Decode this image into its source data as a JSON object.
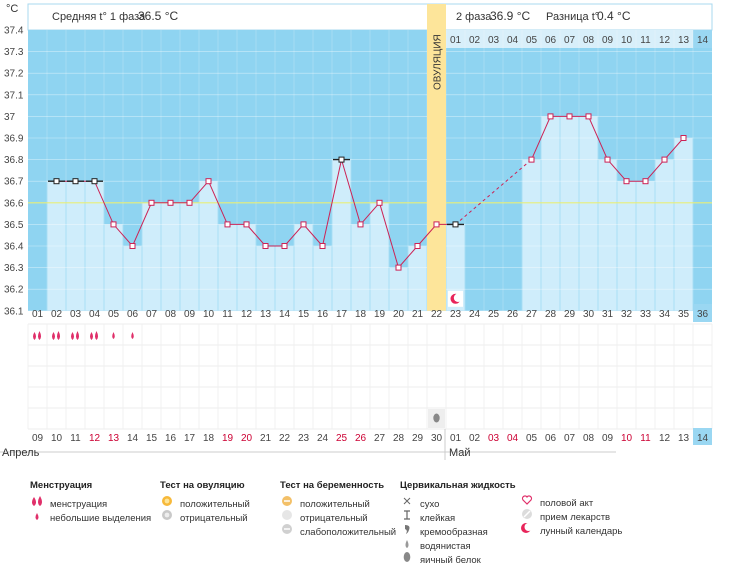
{
  "header": {
    "unit": "°C",
    "phase1_label": "Средняя t° 1 фаза",
    "phase1_value": "36.5 °C",
    "phase2_label": "2 фаза",
    "phase2_value": "36.9 °C",
    "diff_label": "Разница t°",
    "diff_value": "0.4 °C"
  },
  "ovulation_label": "ОВУЛЯЦИЯ",
  "months": {
    "first": "Апрель",
    "second": "Май"
  },
  "colors": {
    "sky": "#8fd4f1",
    "bar": "#cfedfb",
    "ovulation": "#fde59a",
    "line": "#cc2255",
    "threshold": "#e8ee77",
    "weekend": "#cc0033",
    "highlight": "#9ad7f2"
  },
  "chart_data": {
    "type": "line",
    "title": "",
    "ylabel": "°C",
    "ylim": [
      36.1,
      37.4
    ],
    "yticks": [
      "36.1",
      "36.2",
      "36.3",
      "36.4",
      "36.5",
      "36.6",
      "36.7",
      "36.8",
      "36.9",
      "37",
      "37.1",
      "37.2",
      "37.3",
      "37.4"
    ],
    "cycle_days": [
      "01",
      "02",
      "03",
      "04",
      "05",
      "06",
      "07",
      "08",
      "09",
      "10",
      "11",
      "12",
      "13",
      "14",
      "15",
      "16",
      "17",
      "18",
      "19",
      "20",
      "21",
      "22",
      "23",
      "24",
      "25",
      "26",
      "27",
      "28",
      "29",
      "30",
      "31",
      "32",
      "33",
      "34",
      "35",
      "36"
    ],
    "dates": [
      "09",
      "10",
      "11",
      "12",
      "13",
      "14",
      "15",
      "16",
      "17",
      "18",
      "19",
      "20",
      "21",
      "22",
      "23",
      "24",
      "25",
      "26",
      "27",
      "28",
      "29",
      "30",
      "01",
      "02",
      "03",
      "04",
      "05",
      "06",
      "07",
      "08",
      "09",
      "10",
      "11",
      "12",
      "13",
      "14"
    ],
    "date_weekend": [
      false,
      false,
      false,
      true,
      true,
      false,
      false,
      false,
      false,
      false,
      true,
      true,
      false,
      false,
      false,
      false,
      true,
      true,
      false,
      false,
      false,
      false,
      false,
      false,
      true,
      true,
      false,
      false,
      false,
      false,
      false,
      true,
      true,
      false,
      false,
      false
    ],
    "phase2_days": [
      "01",
      "02",
      "03",
      "04",
      "05",
      "06",
      "07",
      "08",
      "09",
      "10",
      "11",
      "12",
      "13",
      "14"
    ],
    "ovulation_day": 22,
    "highlight_day": 36,
    "coverline": 36.6,
    "temperatures": [
      null,
      36.7,
      36.7,
      36.7,
      36.5,
      36.4,
      36.6,
      36.6,
      36.6,
      36.7,
      36.5,
      36.5,
      36.4,
      36.4,
      36.5,
      36.4,
      36.8,
      36.5,
      36.6,
      36.3,
      36.4,
      36.5,
      36.5,
      null,
      null,
      null,
      36.8,
      37.0,
      37.0,
      37.0,
      36.8,
      36.7,
      36.7,
      36.8,
      36.9,
      null
    ],
    "marker_style": [
      "",
      "flat",
      "flat",
      "flat",
      "sq",
      "sq",
      "sq",
      "sq",
      "sq",
      "sq",
      "sq",
      "sq",
      "sq",
      "sq",
      "sq",
      "sq",
      "flat",
      "sq",
      "sq",
      "sq",
      "sq",
      "sq",
      "flat",
      "",
      "",
      "",
      "sq",
      "sq",
      "sq",
      "sq",
      "sq",
      "sq",
      "sq",
      "sq",
      "sq",
      ""
    ],
    "series": [
      {
        "days": [
          2,
          3,
          4,
          5,
          6,
          7,
          8,
          9,
          10,
          11,
          12,
          13,
          14,
          15,
          16,
          17,
          18,
          19,
          20,
          21,
          22,
          23
        ]
      },
      {
        "days": [
          32,
          33,
          34,
          35
        ]
      }
    ],
    "dashed": {
      "from": [
        23,
        36.5
      ],
      "to": [
        27,
        36.8
      ]
    },
    "gap": {
      "from": [
        31,
        36.8
      ],
      "to": [
        32,
        36.7
      ]
    },
    "moon_day": 23,
    "menstruation": [
      {
        "day": 1,
        "kind": "heavy"
      },
      {
        "day": 2,
        "kind": "heavy"
      },
      {
        "day": 3,
        "kind": "heavy"
      },
      {
        "day": 4,
        "kind": "heavy"
      },
      {
        "day": 5,
        "kind": "light"
      },
      {
        "day": 6,
        "kind": "light"
      }
    ],
    "mucus": [
      {
        "day": 22,
        "kind": "egg-white"
      }
    ]
  },
  "legend": {
    "groups": [
      {
        "title": "Менструация",
        "items": [
          {
            "icon": "drop-heavy-icon",
            "label": "менструация"
          },
          {
            "icon": "drop-light-icon",
            "label": "небольшие выделения"
          }
        ]
      },
      {
        "title": "Тест на овуляцию",
        "items": [
          {
            "icon": "ovulation-positive-icon",
            "label": "положительный"
          },
          {
            "icon": "ovulation-negative-icon",
            "label": "отрицательный"
          }
        ]
      },
      {
        "title": "Тест на беременность",
        "items": [
          {
            "icon": "pregnancy-positive-icon",
            "label": "положительный"
          },
          {
            "icon": "pregnancy-negative-icon",
            "label": "отрицательный"
          },
          {
            "icon": "pregnancy-weak-icon",
            "label": "слабоположительный"
          }
        ]
      },
      {
        "title": "Цервикальная жидкость",
        "items": [
          {
            "icon": "dry-icon",
            "label": "сухо"
          },
          {
            "icon": "sticky-icon",
            "label": "клейкая"
          },
          {
            "icon": "creamy-icon",
            "label": "кремообразная"
          },
          {
            "icon": "watery-icon",
            "label": "водянистая"
          },
          {
            "icon": "egg-white-icon",
            "label": "яичный белок"
          }
        ]
      },
      {
        "title": "",
        "items": [
          {
            "icon": "heart-icon",
            "label": "половой акт"
          },
          {
            "icon": "pill-icon",
            "label": "прием лекарств"
          },
          {
            "icon": "moon-icon",
            "label": "лунный календарь"
          }
        ]
      }
    ]
  }
}
